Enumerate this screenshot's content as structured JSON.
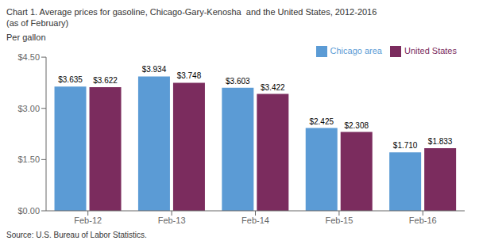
{
  "chart_data": {
    "type": "bar",
    "title": "Chart 1. Average prices for gasoline, Chicago-Gary-Kenosha  and the United States, 2012-2016",
    "subtitle": "(as of February)",
    "ylabel": "Per gallon",
    "annotations": [
      "Source: U.S. Bureau of Labor Statistics."
    ],
    "categories": [
      "Feb-12",
      "Feb-13",
      "Feb-14",
      "Feb-15",
      "Feb-16"
    ],
    "series": [
      {
        "name": "Chicago area",
        "color": "#5B9BD5",
        "values": [
          3.635,
          3.934,
          3.603,
          2.425,
          1.71
        ],
        "value_labels": [
          "$3.635",
          "$3.934",
          "$3.603",
          "$2.425",
          "$1.710"
        ]
      },
      {
        "name": "United States",
        "color": "#7B2C5E",
        "values": [
          3.622,
          3.748,
          3.422,
          2.308,
          1.833
        ],
        "value_labels": [
          "$3.622",
          "$3.748",
          "$3.422",
          "$2.308",
          "$1.833"
        ]
      }
    ],
    "ylim": [
      0.0,
      4.5
    ],
    "yticks": [
      {
        "value": 0.0,
        "label": "$0.00"
      },
      {
        "value": 1.5,
        "label": "$1.50"
      },
      {
        "value": 3.0,
        "label": "$3.00"
      },
      {
        "value": 4.5,
        "label": "$4.50"
      }
    ],
    "grid": false,
    "legend": "upper right",
    "data_labels": true
  }
}
